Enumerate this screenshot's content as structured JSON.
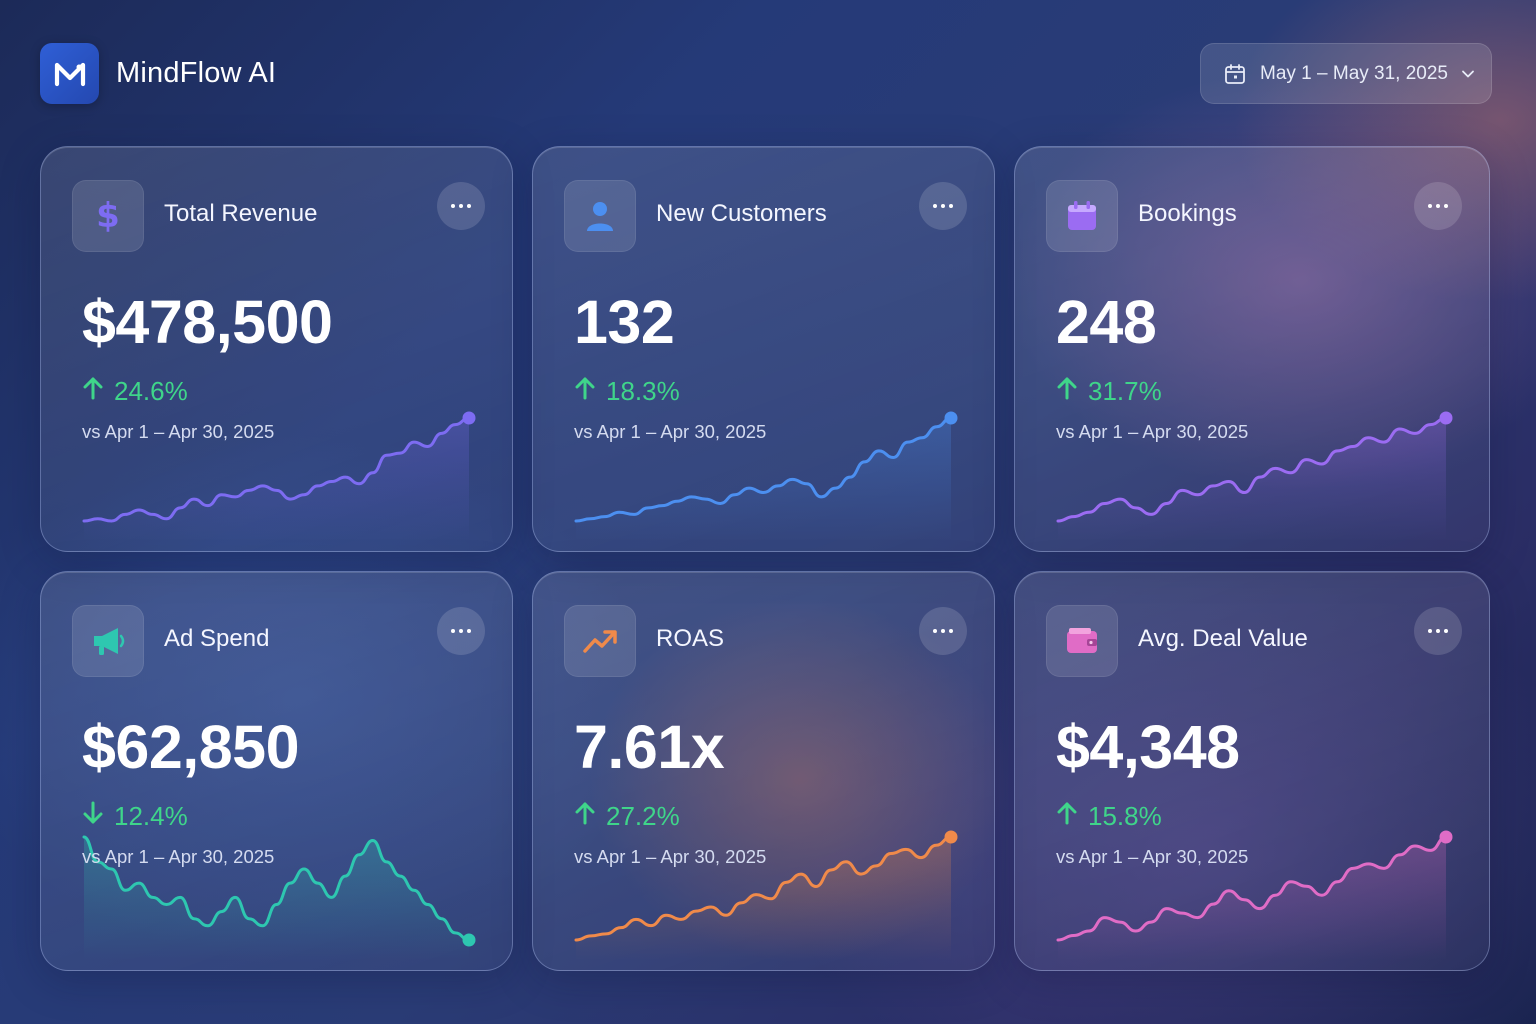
{
  "app": {
    "name": "MindFlow AI"
  },
  "date_range": {
    "label": "May 1 – May 31, 2025"
  },
  "cards": [
    {
      "title": "Total Revenue",
      "value": "$478,500",
      "change": "24.6%",
      "direction": "up",
      "compare": "vs Apr 1 – Apr 30, 2025",
      "icon": "dollar-icon",
      "color": "#7d6cf2",
      "trend": [
        2,
        3,
        2,
        5,
        7,
        5,
        3,
        8,
        12,
        9,
        14,
        13,
        16,
        18,
        16,
        12,
        14,
        18,
        20,
        22,
        19,
        24,
        32,
        33,
        38,
        36,
        42,
        46,
        49
      ]
    },
    {
      "title": "New Customers",
      "value": "132",
      "change": "18.3%",
      "direction": "up",
      "compare": "vs Apr 1 – Apr 30, 2025",
      "icon": "user-icon",
      "color": "#4c8ff0",
      "trend": [
        2,
        3,
        4,
        6,
        5,
        8,
        9,
        11,
        13,
        12,
        10,
        14,
        17,
        15,
        18,
        21,
        19,
        13,
        17,
        22,
        29,
        34,
        31,
        38,
        40,
        45,
        49
      ]
    },
    {
      "title": "Bookings",
      "value": "248",
      "change": "31.7%",
      "direction": "up",
      "compare": "vs Apr 1 – Apr 30, 2025",
      "icon": "calendar-icon",
      "color": "#9b6cf2",
      "trend": [
        2,
        4,
        6,
        10,
        12,
        8,
        5,
        10,
        16,
        14,
        18,
        20,
        15,
        22,
        26,
        24,
        30,
        28,
        34,
        36,
        40,
        38,
        44,
        42,
        46,
        49
      ]
    },
    {
      "title": "Ad Spend",
      "value": "$62,850",
      "change": "12.4%",
      "direction": "down",
      "compare": "vs Apr 1 – Apr 30, 2025",
      "icon": "megaphone-icon",
      "color": "#2ec7b0",
      "trend": [
        49,
        42,
        40,
        34,
        36,
        32,
        30,
        32,
        26,
        24,
        28,
        32,
        26,
        24,
        30,
        36,
        40,
        36,
        32,
        38,
        44,
        48,
        42,
        38,
        34,
        30,
        26,
        22,
        20
      ]
    },
    {
      "title": "ROAS",
      "value": "7.61x",
      "change": "27.2%",
      "direction": "up",
      "compare": "vs Apr 1 – Apr 30, 2025",
      "icon": "trending-up-icon",
      "color": "#f08a4a",
      "trend": [
        2,
        4,
        5,
        8,
        12,
        9,
        14,
        12,
        16,
        18,
        14,
        20,
        24,
        22,
        30,
        34,
        28,
        36,
        40,
        34,
        38,
        44,
        46,
        42,
        48,
        52
      ]
    },
    {
      "title": "Avg. Deal Value",
      "value": "$4,348",
      "change": "15.8%",
      "direction": "up",
      "compare": "vs Apr 1 – Apr 30, 2025",
      "icon": "wallet-icon",
      "color": "#e06cc6",
      "trend": [
        2,
        4,
        6,
        12,
        10,
        6,
        10,
        16,
        14,
        12,
        18,
        24,
        20,
        16,
        22,
        28,
        26,
        22,
        28,
        34,
        36,
        34,
        40,
        44,
        42,
        48
      ]
    }
  ]
}
